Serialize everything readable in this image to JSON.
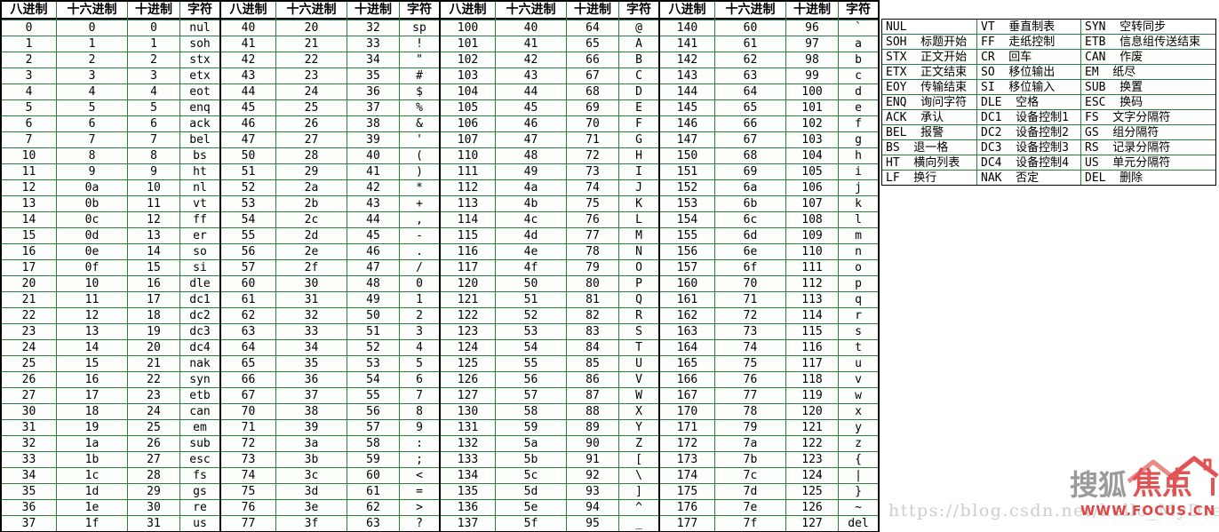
{
  "colors": {
    "grid_green": "#2a8038",
    "border_black": "#000000",
    "text_black": "#000000",
    "logo_gray": "#9a9a9a",
    "logo_red": "#e25454",
    "url_gray": "#cdcdcd"
  },
  "table": {
    "headers": [
      "八进制",
      "十六进制",
      "十进制",
      "字符"
    ],
    "groups": [
      [
        [
          "0",
          "0",
          "0",
          "nul"
        ],
        [
          "1",
          "1",
          "1",
          "soh"
        ],
        [
          "2",
          "2",
          "2",
          "stx"
        ],
        [
          "3",
          "3",
          "3",
          "etx"
        ],
        [
          "4",
          "4",
          "4",
          "eot"
        ],
        [
          "5",
          "5",
          "5",
          "enq"
        ],
        [
          "6",
          "6",
          "6",
          "ack"
        ],
        [
          "7",
          "7",
          "7",
          "bel"
        ],
        [
          "10",
          "8",
          "8",
          "bs"
        ],
        [
          "11",
          "9",
          "9",
          "ht"
        ],
        [
          "12",
          "0a",
          "10",
          "nl"
        ],
        [
          "13",
          "0b",
          "11",
          "vt"
        ],
        [
          "14",
          "0c",
          "12",
          "ff"
        ],
        [
          "15",
          "0d",
          "13",
          "er"
        ],
        [
          "16",
          "0e",
          "14",
          "so"
        ],
        [
          "17",
          "0f",
          "15",
          "si"
        ],
        [
          "20",
          "10",
          "16",
          "dle"
        ],
        [
          "21",
          "11",
          "17",
          "dc1"
        ],
        [
          "22",
          "12",
          "18",
          "dc2"
        ],
        [
          "23",
          "13",
          "19",
          "dc3"
        ],
        [
          "24",
          "14",
          "20",
          "dc4"
        ],
        [
          "25",
          "15",
          "21",
          "nak"
        ],
        [
          "26",
          "16",
          "22",
          "syn"
        ],
        [
          "27",
          "17",
          "23",
          "etb"
        ],
        [
          "30",
          "18",
          "24",
          "can"
        ],
        [
          "31",
          "19",
          "25",
          "em"
        ],
        [
          "32",
          "1a",
          "26",
          "sub"
        ],
        [
          "33",
          "1b",
          "27",
          "esc"
        ],
        [
          "34",
          "1c",
          "28",
          "fs"
        ],
        [
          "35",
          "1d",
          "29",
          "gs"
        ],
        [
          "36",
          "1e",
          "30",
          "re"
        ],
        [
          "37",
          "1f",
          "31",
          "us"
        ]
      ],
      [
        [
          "40",
          "20",
          "32",
          "sp"
        ],
        [
          "41",
          "21",
          "33",
          "!"
        ],
        [
          "42",
          "22",
          "34",
          "\""
        ],
        [
          "43",
          "23",
          "35",
          "#"
        ],
        [
          "44",
          "24",
          "36",
          "$"
        ],
        [
          "45",
          "25",
          "37",
          "%"
        ],
        [
          "46",
          "26",
          "38",
          "&"
        ],
        [
          "47",
          "27",
          "39",
          "'"
        ],
        [
          "50",
          "28",
          "40",
          "("
        ],
        [
          "51",
          "29",
          "41",
          ")"
        ],
        [
          "52",
          "2a",
          "42",
          "*"
        ],
        [
          "53",
          "2b",
          "43",
          "+"
        ],
        [
          "54",
          "2c",
          "44",
          ","
        ],
        [
          "55",
          "2d",
          "45",
          "-"
        ],
        [
          "56",
          "2e",
          "46",
          "."
        ],
        [
          "57",
          "2f",
          "47",
          "/"
        ],
        [
          "60",
          "30",
          "48",
          "0"
        ],
        [
          "61",
          "31",
          "49",
          "1"
        ],
        [
          "62",
          "32",
          "50",
          "2"
        ],
        [
          "63",
          "33",
          "51",
          "3"
        ],
        [
          "64",
          "34",
          "52",
          "4"
        ],
        [
          "65",
          "35",
          "53",
          "5"
        ],
        [
          "66",
          "36",
          "54",
          "6"
        ],
        [
          "67",
          "37",
          "55",
          "7"
        ],
        [
          "70",
          "38",
          "56",
          "8"
        ],
        [
          "71",
          "39",
          "57",
          "9"
        ],
        [
          "72",
          "3a",
          "58",
          ":"
        ],
        [
          "73",
          "3b",
          "59",
          ";"
        ],
        [
          "74",
          "3c",
          "60",
          "<"
        ],
        [
          "75",
          "3d",
          "61",
          "="
        ],
        [
          "76",
          "3e",
          "62",
          ">"
        ],
        [
          "77",
          "3f",
          "63",
          "?"
        ]
      ],
      [
        [
          "100",
          "40",
          "64",
          "@"
        ],
        [
          "101",
          "41",
          "65",
          "A"
        ],
        [
          "102",
          "42",
          "66",
          "B"
        ],
        [
          "103",
          "43",
          "67",
          "C"
        ],
        [
          "104",
          "44",
          "68",
          "D"
        ],
        [
          "105",
          "45",
          "69",
          "E"
        ],
        [
          "106",
          "46",
          "70",
          "F"
        ],
        [
          "107",
          "47",
          "71",
          "G"
        ],
        [
          "110",
          "48",
          "72",
          "H"
        ],
        [
          "111",
          "49",
          "73",
          "I"
        ],
        [
          "112",
          "4a",
          "74",
          "J"
        ],
        [
          "113",
          "4b",
          "75",
          "K"
        ],
        [
          "114",
          "4c",
          "76",
          "L"
        ],
        [
          "115",
          "4d",
          "77",
          "M"
        ],
        [
          "116",
          "4e",
          "78",
          "N"
        ],
        [
          "117",
          "4f",
          "79",
          "O"
        ],
        [
          "120",
          "50",
          "80",
          "P"
        ],
        [
          "121",
          "51",
          "81",
          "Q"
        ],
        [
          "122",
          "52",
          "82",
          "R"
        ],
        [
          "123",
          "53",
          "83",
          "S"
        ],
        [
          "124",
          "54",
          "84",
          "T"
        ],
        [
          "125",
          "55",
          "85",
          "U"
        ],
        [
          "126",
          "56",
          "86",
          "V"
        ],
        [
          "127",
          "57",
          "87",
          "W"
        ],
        [
          "130",
          "58",
          "88",
          "X"
        ],
        [
          "131",
          "59",
          "89",
          "Y"
        ],
        [
          "132",
          "5a",
          "90",
          "Z"
        ],
        [
          "133",
          "5b",
          "91",
          "["
        ],
        [
          "134",
          "5c",
          "92",
          "\\"
        ],
        [
          "135",
          "5d",
          "93",
          "]"
        ],
        [
          "136",
          "5e",
          "94",
          "^"
        ],
        [
          "137",
          "5f",
          "95",
          "_"
        ]
      ],
      [
        [
          "140",
          "60",
          "96",
          "`"
        ],
        [
          "141",
          "61",
          "97",
          "a"
        ],
        [
          "142",
          "62",
          "98",
          "b"
        ],
        [
          "143",
          "63",
          "99",
          "c"
        ],
        [
          "144",
          "64",
          "100",
          "d"
        ],
        [
          "145",
          "65",
          "101",
          "e"
        ],
        [
          "146",
          "66",
          "102",
          "f"
        ],
        [
          "147",
          "67",
          "103",
          "g"
        ],
        [
          "150",
          "68",
          "104",
          "h"
        ],
        [
          "151",
          "69",
          "105",
          "i"
        ],
        [
          "152",
          "6a",
          "106",
          "j"
        ],
        [
          "153",
          "6b",
          "107",
          "k"
        ],
        [
          "154",
          "6c",
          "108",
          "l"
        ],
        [
          "155",
          "6d",
          "109",
          "m"
        ],
        [
          "156",
          "6e",
          "110",
          "n"
        ],
        [
          "157",
          "6f",
          "111",
          "o"
        ],
        [
          "160",
          "70",
          "112",
          "p"
        ],
        [
          "161",
          "71",
          "113",
          "q"
        ],
        [
          "162",
          "72",
          "114",
          "r"
        ],
        [
          "163",
          "73",
          "115",
          "s"
        ],
        [
          "164",
          "74",
          "116",
          "t"
        ],
        [
          "165",
          "75",
          "117",
          "u"
        ],
        [
          "166",
          "76",
          "118",
          "v"
        ],
        [
          "167",
          "77",
          "119",
          "w"
        ],
        [
          "170",
          "78",
          "120",
          "x"
        ],
        [
          "171",
          "79",
          "121",
          "y"
        ],
        [
          "172",
          "7a",
          "122",
          "z"
        ],
        [
          "173",
          "7b",
          "123",
          "{"
        ],
        [
          "174",
          "7c",
          "124",
          "|"
        ],
        [
          "175",
          "7d",
          "125",
          "}"
        ],
        [
          "176",
          "7e",
          "126",
          "~"
        ],
        [
          "177",
          "7f",
          "127",
          "del"
        ]
      ]
    ]
  },
  "legend": {
    "rows": [
      [
        "NUL",
        "VT  垂直制表",
        "SYN  空转同步"
      ],
      [
        "SOH  标题开始",
        "FF  走纸控制",
        "ETB  信息组传送结束"
      ],
      [
        "STX  正文开始",
        "CR  回车",
        "CAN  作废"
      ],
      [
        "ETX  正文结束",
        "SO  移位输出",
        "EM  纸尽"
      ],
      [
        "EOY  传输结束",
        "SI  移位输入",
        "SUB  换置"
      ],
      [
        "ENQ  询问字符",
        "DLE  空格",
        "ESC  换码"
      ],
      [
        "ACK  承认",
        "DC1  设备控制1",
        "FS  文字分隔符"
      ],
      [
        "BEL  报警",
        "DC2  设备控制2",
        "GS  组分隔符"
      ],
      [
        "BS  退一格",
        "DC3  设备控制3",
        "RS  记录分隔符"
      ],
      [
        "HT  横向列表",
        "DC4  设备控制4",
        "US  单元分隔符"
      ],
      [
        "LF  换行",
        "NAK  否定",
        "DEL  删除"
      ]
    ]
  },
  "watermark": {
    "url_text": "https://blog.csdn.net/hello_MyDream",
    "logo_gray_text": "搜狐",
    "logo_red_text": "焦点",
    "logo_site_text": "WWW.FOCUS.CN"
  }
}
